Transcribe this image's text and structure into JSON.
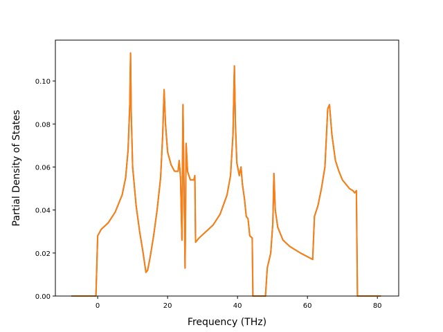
{
  "chart_data": {
    "type": "line",
    "x_label": "Frequency (THz)",
    "y_label": "Partial Density of States",
    "x": [
      -7.5,
      -0.5,
      0,
      1,
      3,
      5,
      7,
      8,
      8.7,
      9.2,
      9.4,
      9.6,
      10,
      11,
      12,
      13,
      13.8,
      14.3,
      15,
      16,
      17,
      18,
      18.6,
      19,
      19.4,
      20,
      21,
      22,
      23,
      23.3,
      23.7,
      24.1,
      24.4,
      24.7,
      25,
      25.3,
      25.7,
      26.5,
      27.5,
      27.8,
      28,
      29,
      31,
      33,
      35,
      37,
      38,
      38.7,
      39.1,
      39.4,
      39.8,
      40.5,
      41,
      41.4,
      42,
      42.5,
      43,
      43.5,
      44.2,
      44.4,
      48,
      48.5,
      49.5,
      50.1,
      50.4,
      50.8,
      51.5,
      53,
      55,
      58,
      61.5,
      62,
      63,
      64,
      65,
      65.8,
      66.3,
      67,
      68,
      69,
      70,
      72,
      73,
      73.5,
      74,
      74.3,
      81
    ],
    "series": [
      {
        "color": "#1f77b4",
        "values": [
          0,
          0,
          0.028,
          0.031,
          0.034,
          0.039,
          0.047,
          0.055,
          0.068,
          0.09,
          0.113,
          0.085,
          0.06,
          0.042,
          0.03,
          0.02,
          0.011,
          0.012,
          0.018,
          0.028,
          0.04,
          0.055,
          0.075,
          0.096,
          0.08,
          0.067,
          0.061,
          0.058,
          0.058,
          0.063,
          0.055,
          0.026,
          0.089,
          0.05,
          0.013,
          0.071,
          0.058,
          0.054,
          0.054,
          0.056,
          0.025,
          0.027,
          0.03,
          0.033,
          0.038,
          0.047,
          0.056,
          0.075,
          0.107,
          0.08,
          0.062,
          0.056,
          0.06,
          0.052,
          0.045,
          0.037,
          0.036,
          0.028,
          0.027,
          0,
          0,
          0.013,
          0.02,
          0.034,
          0.057,
          0.04,
          0.032,
          0.026,
          0.023,
          0.02,
          0.017,
          0.037,
          0.042,
          0.05,
          0.06,
          0.087,
          0.089,
          0.075,
          0.063,
          0.058,
          0.054,
          0.05,
          0.049,
          0.048,
          0.049,
          0,
          0
        ]
      },
      {
        "color": "#ff7f0e",
        "values": [
          0,
          0,
          0.028,
          0.031,
          0.034,
          0.039,
          0.047,
          0.055,
          0.068,
          0.09,
          0.113,
          0.085,
          0.06,
          0.042,
          0.03,
          0.02,
          0.011,
          0.012,
          0.018,
          0.028,
          0.04,
          0.055,
          0.075,
          0.096,
          0.08,
          0.067,
          0.061,
          0.058,
          0.058,
          0.063,
          0.055,
          0.026,
          0.089,
          0.05,
          0.013,
          0.071,
          0.058,
          0.054,
          0.054,
          0.056,
          0.025,
          0.027,
          0.03,
          0.033,
          0.038,
          0.047,
          0.056,
          0.075,
          0.107,
          0.08,
          0.062,
          0.056,
          0.06,
          0.052,
          0.045,
          0.037,
          0.036,
          0.028,
          0.027,
          0,
          0,
          0.013,
          0.02,
          0.034,
          0.057,
          0.04,
          0.032,
          0.026,
          0.023,
          0.02,
          0.017,
          0.037,
          0.042,
          0.05,
          0.06,
          0.087,
          0.089,
          0.075,
          0.063,
          0.058,
          0.054,
          0.05,
          0.049,
          0.048,
          0.049,
          0,
          0
        ]
      }
    ],
    "xlim": [
      -12.1,
      86.1
    ],
    "ylim": [
      0,
      0.119
    ],
    "xticks": [
      0,
      20,
      40,
      60,
      80
    ],
    "yticks": [
      {
        "value": 0,
        "label": "0.00"
      },
      {
        "value": 0.02,
        "label": "0.02"
      },
      {
        "value": 0.04,
        "label": "0.04"
      },
      {
        "value": 0.06,
        "label": "0.06"
      },
      {
        "value": 0.08,
        "label": "0.08"
      },
      {
        "value": 0.1,
        "label": "0.10"
      }
    ],
    "grid": false
  }
}
